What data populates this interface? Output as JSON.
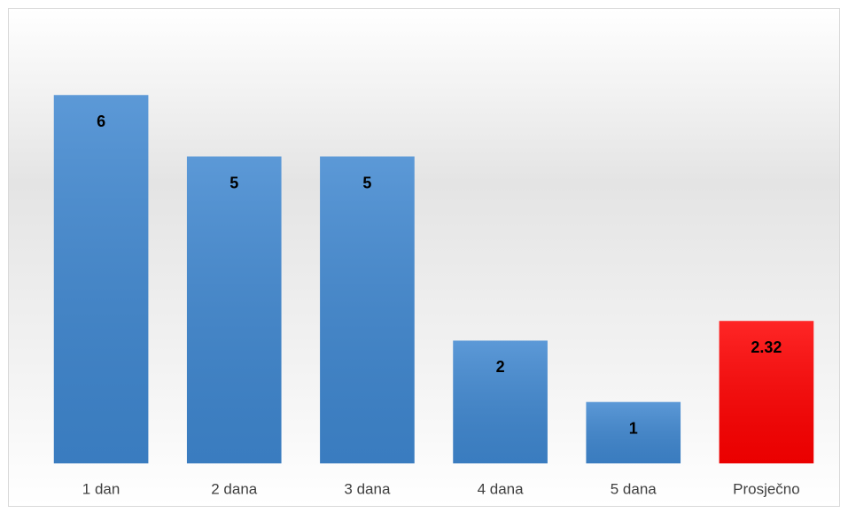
{
  "chart_data": {
    "type": "bar",
    "categories": [
      "1 dan",
      "2 dana",
      "3 dana",
      "4 dana",
      "5 dana",
      "Prosječno"
    ],
    "values": [
      6,
      5,
      5,
      2,
      1,
      2.32
    ],
    "colors": [
      "#3f87d0",
      "#3f87d0",
      "#3f87d0",
      "#3f87d0",
      "#3f87d0",
      "#ff0000"
    ],
    "ylim": [
      0,
      7
    ]
  }
}
